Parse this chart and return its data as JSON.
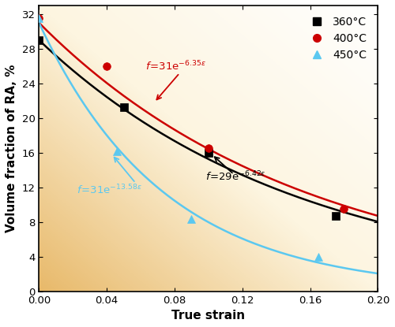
{
  "xlabel": "True strain",
  "ylabel": "Volume fraction of RA, %",
  "xlim": [
    0,
    0.2
  ],
  "ylim": [
    0,
    33
  ],
  "yticks": [
    0,
    4,
    8,
    12,
    16,
    20,
    24,
    28,
    32
  ],
  "xticks": [
    0.0,
    0.04,
    0.08,
    0.12,
    0.16,
    0.2
  ],
  "series_360": {
    "x_data": [
      0.0,
      0.05,
      0.1,
      0.175
    ],
    "y_data": [
      29.0,
      21.3,
      16.0,
      8.7
    ],
    "color": "#000000",
    "marker": "s",
    "label": "360°C",
    "A": 29,
    "k": 6.42
  },
  "series_400": {
    "x_data": [
      0.0,
      0.04,
      0.1,
      0.18
    ],
    "y_data": [
      31.5,
      26.0,
      16.5,
      9.5
    ],
    "color": "#cc0000",
    "marker": "o",
    "label": "400°C",
    "A": 31,
    "k": 6.35
  },
  "series_450": {
    "x_data": [
      0.0,
      0.046,
      0.09,
      0.165
    ],
    "y_data": [
      31.5,
      16.2,
      8.3,
      4.0
    ],
    "color": "#5bc8f0",
    "marker": "^",
    "label": "450°C",
    "A": 31,
    "k": 13.58
  },
  "marker_size": 7,
  "line_width": 1.8,
  "figsize": [
    5.0,
    4.15
  ],
  "dpi": 100
}
